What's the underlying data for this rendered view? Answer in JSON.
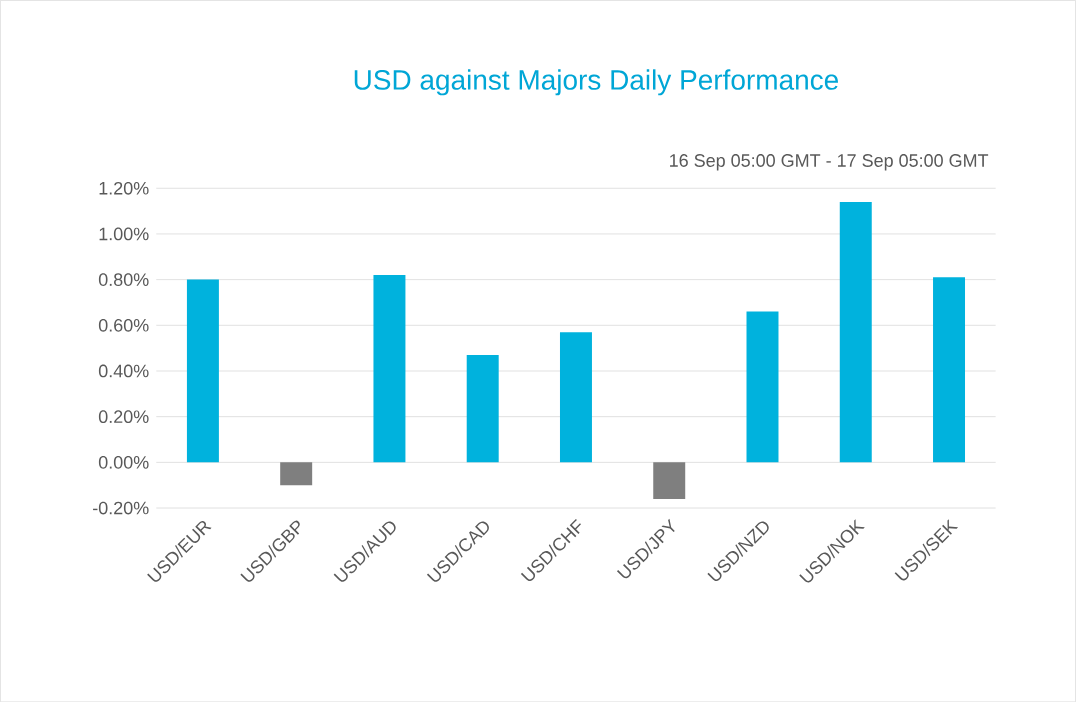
{
  "chart_data": {
    "type": "bar",
    "title": "USD against Majors Daily Performance",
    "subtitle": "16 Sep 05:00 GMT -  17 Sep  05:00 GMT",
    "categories": [
      "USD/EUR",
      "USD/GBP",
      "USD/AUD",
      "USD/CAD",
      "USD/CHF",
      "USD/JPY",
      "USD/NZD",
      "USD/NOK",
      "USD/SEK"
    ],
    "values": [
      0.8,
      -0.1,
      0.82,
      0.47,
      0.57,
      -0.16,
      0.66,
      1.14,
      0.81
    ],
    "colors": [
      "#00b2dd",
      "#7f7f7f",
      "#00b2dd",
      "#00b2dd",
      "#00b2dd",
      "#7f7f7f",
      "#00b2dd",
      "#00b2dd",
      "#00b2dd"
    ],
    "ylim": [
      -0.2,
      1.2
    ],
    "yticks": [
      {
        "value": -0.2,
        "label": "-0.20%"
      },
      {
        "value": 0,
        "label": "0.00%"
      },
      {
        "value": 0.2,
        "label": "0.20%"
      },
      {
        "value": 0.4,
        "label": "0.40%"
      },
      {
        "value": 0.6,
        "label": "0.60%"
      },
      {
        "value": 0.8,
        "label": "0.80%"
      },
      {
        "value": 1.0,
        "label": "1.00%"
      },
      {
        "value": 1.2,
        "label": "1.20%"
      }
    ],
    "grid": "y"
  }
}
